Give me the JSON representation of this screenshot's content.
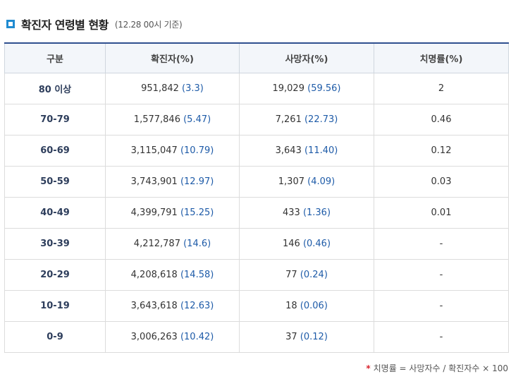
{
  "title": {
    "main": "확진자 연령별 현황",
    "note": "(12.28 00시 기준)"
  },
  "table": {
    "headers": [
      "구분",
      "확진자(%)",
      "사망자(%)",
      "치명률(%)"
    ],
    "rows": [
      {
        "age": "80 이상",
        "confirmed": "951,842",
        "confirmed_pct": "(3.3)",
        "deaths": "19,029",
        "deaths_pct": "(59.56)",
        "fatality": "2"
      },
      {
        "age": "70-79",
        "confirmed": "1,577,846",
        "confirmed_pct": "(5.47)",
        "deaths": "7,261",
        "deaths_pct": "(22.73)",
        "fatality": "0.46"
      },
      {
        "age": "60-69",
        "confirmed": "3,115,047",
        "confirmed_pct": "(10.79)",
        "deaths": "3,643",
        "deaths_pct": "(11.40)",
        "fatality": "0.12"
      },
      {
        "age": "50-59",
        "confirmed": "3,743,901",
        "confirmed_pct": "(12.97)",
        "deaths": "1,307",
        "deaths_pct": "(4.09)",
        "fatality": "0.03"
      },
      {
        "age": "40-49",
        "confirmed": "4,399,791",
        "confirmed_pct": "(15.25)",
        "deaths": "433",
        "deaths_pct": "(1.36)",
        "fatality": "0.01"
      },
      {
        "age": "30-39",
        "confirmed": "4,212,787",
        "confirmed_pct": "(14.6)",
        "deaths": "146",
        "deaths_pct": "(0.46)",
        "fatality": "-"
      },
      {
        "age": "20-29",
        "confirmed": "4,208,618",
        "confirmed_pct": "(14.58)",
        "deaths": "77",
        "deaths_pct": "(0.24)",
        "fatality": "-"
      },
      {
        "age": "10-19",
        "confirmed": "3,643,618",
        "confirmed_pct": "(12.63)",
        "deaths": "18",
        "deaths_pct": "(0.06)",
        "fatality": "-"
      },
      {
        "age": "0-9",
        "confirmed": "3,006,263",
        "confirmed_pct": "(10.42)",
        "deaths": "37",
        "deaths_pct": "(0.12)",
        "fatality": "-"
      }
    ]
  },
  "footnote": {
    "marker": "*",
    "text": "치명률 = 사망자수 / 확진자수 × 100"
  },
  "colors": {
    "accent": "#1f8bd1",
    "header_border": "#2f4f8f",
    "value_blue": "#1e5ba8"
  },
  "icons": {
    "title": "square-bullet-icon"
  }
}
